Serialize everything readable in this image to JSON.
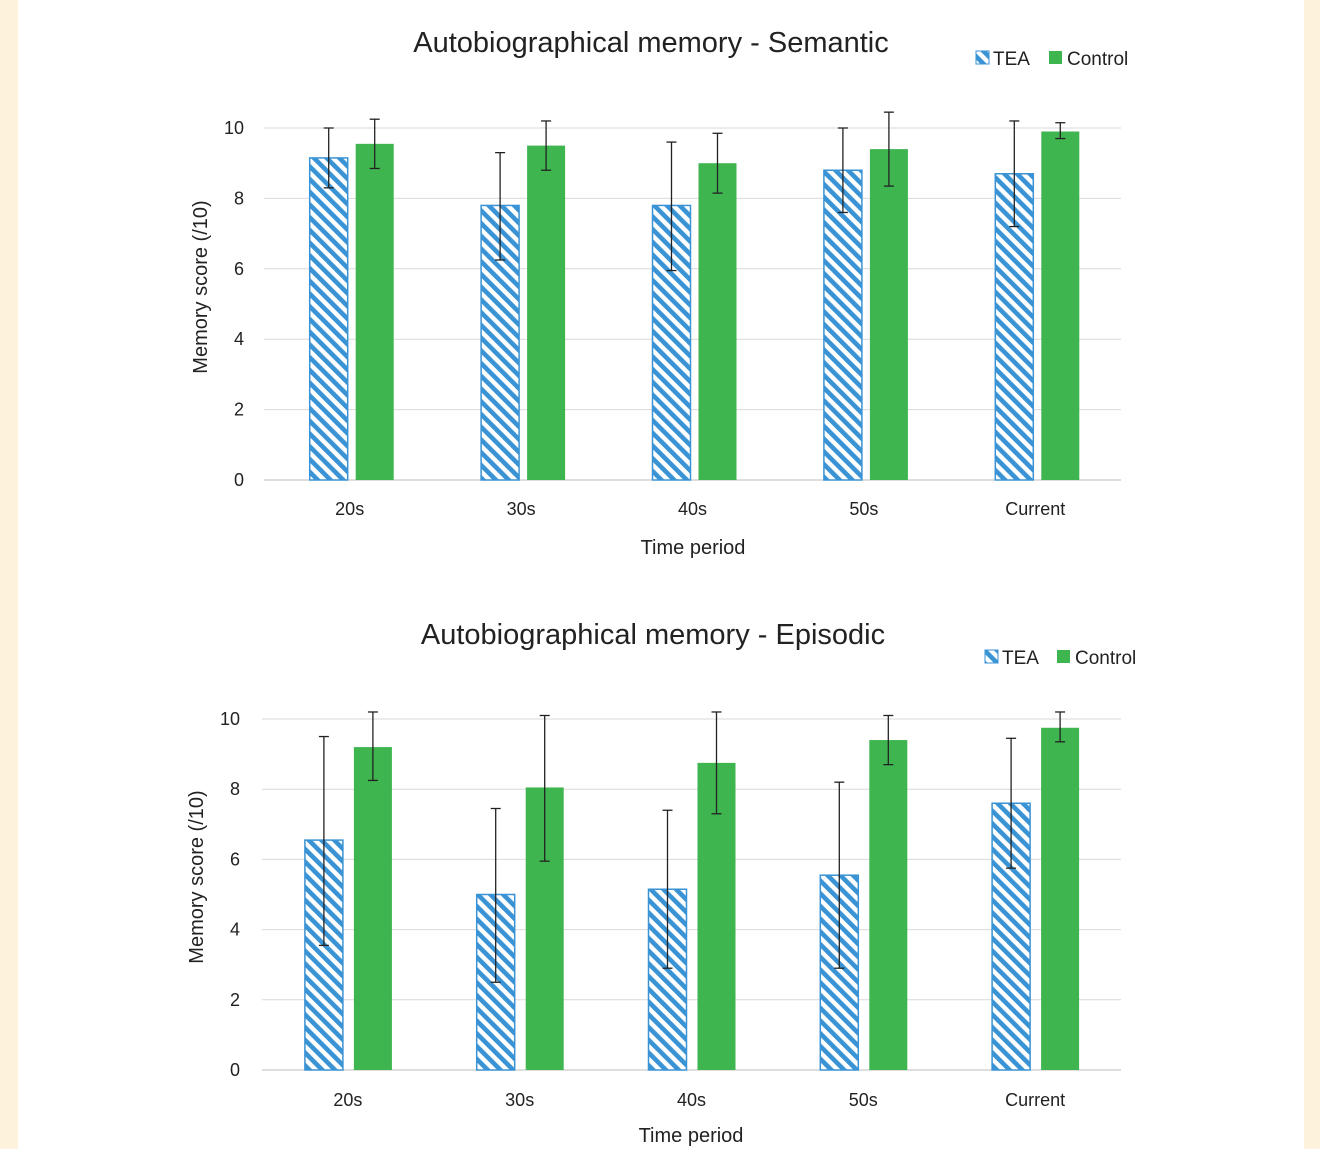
{
  "chart_data": [
    {
      "type": "bar",
      "title": "Autobiographical memory - Semantic",
      "xlabel": "Time period",
      "ylabel": "Memory score (/10)",
      "ylim": [
        0,
        10
      ],
      "yticks": [
        0,
        2,
        4,
        6,
        8,
        10
      ],
      "grid": true,
      "legend_position": "top-right",
      "categories": [
        "20s",
        "30s",
        "40s",
        "50s",
        "Current"
      ],
      "series": [
        {
          "name": "TEA",
          "color": "#3a93d4",
          "pattern": "diagonal-hatch",
          "values": [
            9.15,
            7.8,
            7.8,
            8.8,
            8.7
          ],
          "error_low": [
            8.3,
            6.25,
            5.95,
            7.6,
            7.2
          ],
          "error_high": [
            10.0,
            9.3,
            9.6,
            10.0,
            10.2
          ]
        },
        {
          "name": "Control",
          "color": "#3eb54f",
          "pattern": "solid",
          "values": [
            9.55,
            9.5,
            9.0,
            9.4,
            9.9
          ],
          "error_low": [
            8.85,
            8.8,
            8.15,
            8.35,
            9.7
          ],
          "error_high": [
            10.25,
            10.2,
            9.85,
            10.45,
            10.15
          ]
        }
      ]
    },
    {
      "type": "bar",
      "title": "Autobiographical memory - Episodic",
      "xlabel": "Time period",
      "ylabel": "Memory score (/10)",
      "ylim": [
        0,
        10
      ],
      "yticks": [
        0,
        2,
        4,
        6,
        8,
        10
      ],
      "grid": true,
      "legend_position": "top-right",
      "categories": [
        "20s",
        "30s",
        "40s",
        "50s",
        "Current"
      ],
      "series": [
        {
          "name": "TEA",
          "color": "#3a93d4",
          "pattern": "diagonal-hatch",
          "values": [
            6.55,
            5.0,
            5.15,
            5.55,
            7.6
          ],
          "error_low": [
            3.55,
            2.5,
            2.9,
            2.9,
            5.75
          ],
          "error_high": [
            9.5,
            7.45,
            7.4,
            8.2,
            9.45
          ]
        },
        {
          "name": "Control",
          "color": "#3eb54f",
          "pattern": "solid",
          "values": [
            9.2,
            8.05,
            8.75,
            9.4,
            9.75
          ],
          "error_low": [
            8.25,
            5.95,
            7.3,
            8.7,
            9.35
          ],
          "error_high": [
            10.2,
            10.1,
            10.2,
            10.1,
            10.2
          ]
        }
      ]
    }
  ]
}
